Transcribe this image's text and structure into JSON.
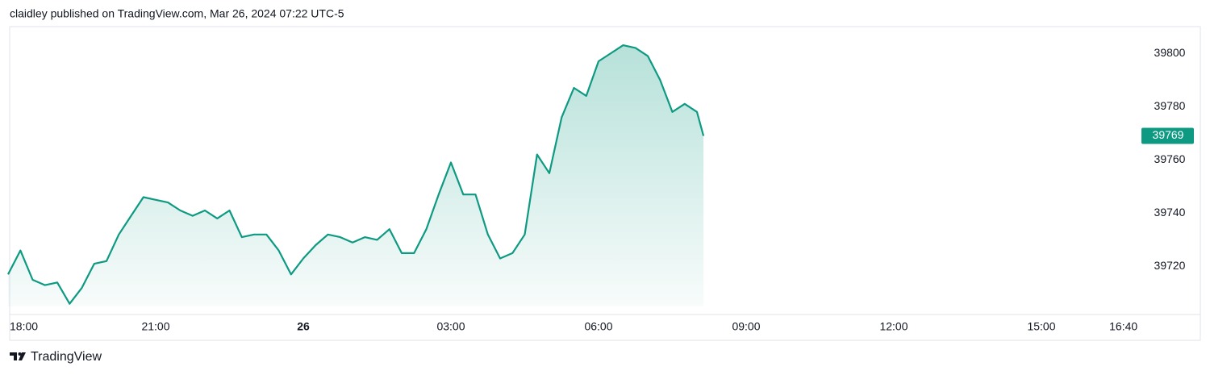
{
  "header": {
    "text": "claidley published on TradingView.com, Mar 26, 2024 07:22 UTC-5"
  },
  "footer": {
    "brand": "TradingView"
  },
  "chart_data": {
    "type": "area",
    "color": "#0e9a82",
    "x": [
      "18:00",
      "18:15",
      "18:30",
      "18:45",
      "19:00",
      "19:15",
      "19:30",
      "19:45",
      "20:00",
      "20:15",
      "20:30",
      "20:45",
      "21:00",
      "21:15",
      "21:30",
      "21:45",
      "22:00",
      "22:15",
      "22:30",
      "22:45",
      "23:00",
      "23:15",
      "23:30",
      "23:45",
      "00:00",
      "00:15",
      "00:30",
      "00:45",
      "01:00",
      "01:15",
      "01:30",
      "01:45",
      "02:00",
      "02:15",
      "02:30",
      "02:45",
      "03:00",
      "03:15",
      "03:30",
      "03:45",
      "04:00",
      "04:15",
      "04:30",
      "04:45",
      "05:00",
      "05:15",
      "05:30",
      "05:45",
      "06:00",
      "06:15",
      "06:30",
      "06:45",
      "07:00",
      "07:15",
      "07:30",
      "07:45",
      "08:00",
      "08:08"
    ],
    "values": [
      39717,
      39726,
      39715,
      39713,
      39714,
      39706,
      39712,
      39721,
      39722,
      39732,
      39739,
      39746,
      39745,
      39744,
      39741,
      39739,
      39741,
      39738,
      39741,
      39731,
      39732,
      39732,
      39726,
      39717,
      39723,
      39728,
      39732,
      39731,
      39729,
      39731,
      39730,
      39734,
      39725,
      39725,
      39734,
      39747,
      39759,
      39747,
      39747,
      39732,
      39723,
      39725,
      39732,
      39762,
      39755,
      39776,
      39787,
      39784,
      39797,
      39800,
      39803,
      39802,
      39799,
      39790,
      39778,
      39781,
      39778,
      39769
    ],
    "last_price": 39769,
    "xlim": [
      "18:00",
      "17:00"
    ],
    "xticks": [
      "18:00",
      "21:00",
      {
        "value": "00:00",
        "label": "26"
      },
      "03:00",
      "06:00",
      "09:00",
      "12:00",
      "15:00",
      "16:40"
    ],
    "ylim": [
      39705,
      39810
    ],
    "yticks": [
      39720,
      39740,
      39760,
      39780,
      39800
    ]
  }
}
